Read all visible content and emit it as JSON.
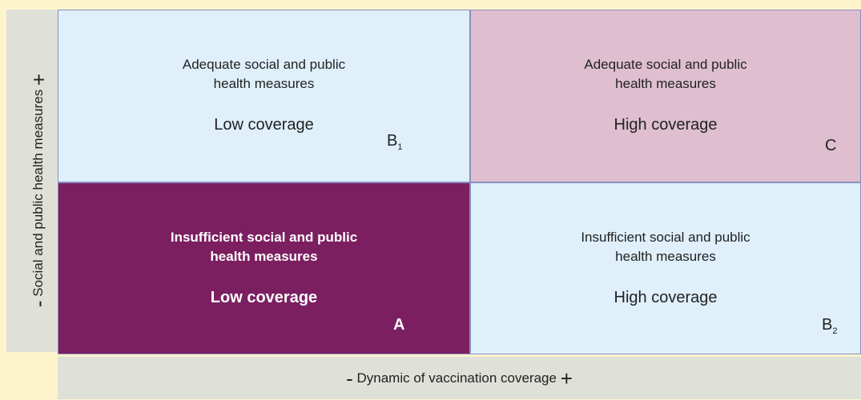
{
  "y_axis": {
    "minus": "-",
    "label": "Social and public health measures",
    "plus": "+"
  },
  "x_axis": {
    "minus": "-",
    "label": "Dynamic of vaccination coverage",
    "plus": "+"
  },
  "quadrants": [
    {
      "measures": "Adequate social and public health measures",
      "coverage": "Low coverage",
      "label": "B",
      "subscript": "1"
    },
    {
      "measures": "Adequate social and public health measures",
      "coverage": "High coverage",
      "label": "C"
    },
    {
      "measures": "Insufficient social and public health measures",
      "coverage": "Low coverage",
      "label": "A"
    },
    {
      "measures": "Insufficient social and public health measures",
      "coverage": "High coverage",
      "label": "B",
      "subscript": "2"
    }
  ]
}
